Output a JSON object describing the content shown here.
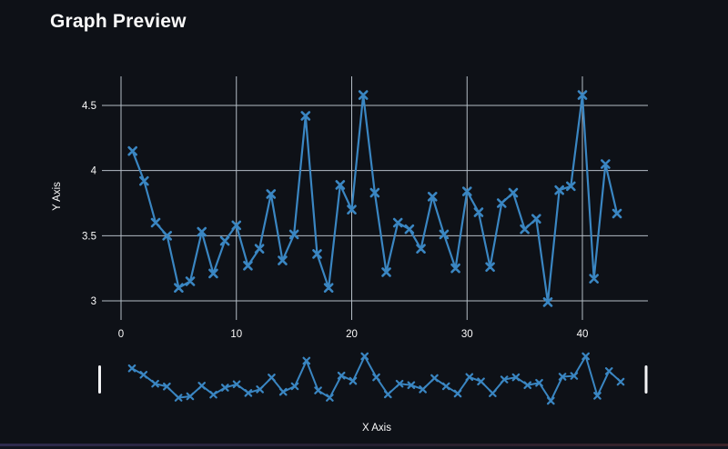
{
  "title": "Graph Preview",
  "theme": {
    "background": "#0e1117",
    "text_color": "#fafafa",
    "grid_color": "#b4bdc6",
    "line_color": "#3a86c2",
    "handle_color": "#f2f3f5",
    "bottom_bar_gradient": [
      "#2e2b4e",
      "#241f30",
      "#3b2329"
    ]
  },
  "chart_data": {
    "type": "line",
    "title": "Graph Preview",
    "xlabel": "X Axis",
    "ylabel": "Y Axis",
    "marker": "x",
    "grid": true,
    "legend": false,
    "x_ticks": [
      0,
      10,
      20,
      30,
      40
    ],
    "y_ticks": [
      3,
      3.5,
      4,
      4.5
    ],
    "xlim": [
      -1,
      45.7
    ],
    "ylim": [
      2.85,
      4.72
    ],
    "x": [
      1,
      2,
      3,
      4,
      5,
      6,
      7,
      8,
      9,
      10,
      11,
      12,
      13,
      14,
      15,
      16,
      17,
      18,
      19,
      20,
      21,
      22,
      23,
      24,
      25,
      26,
      27,
      28,
      29,
      30,
      31,
      32,
      33,
      34,
      35,
      36,
      37,
      38,
      39,
      40,
      41,
      42,
      43
    ],
    "y": [
      4.15,
      3.92,
      3.6,
      3.5,
      3.1,
      3.15,
      3.53,
      3.21,
      3.46,
      3.58,
      3.27,
      3.4,
      3.82,
      3.31,
      3.51,
      4.42,
      3.36,
      3.1,
      3.89,
      3.7,
      4.58,
      3.83,
      3.22,
      3.6,
      3.55,
      3.4,
      3.8,
      3.51,
      3.25,
      3.84,
      3.68,
      3.26,
      3.75,
      3.83,
      3.55,
      3.63,
      2.99,
      3.85,
      3.88,
      4.58,
      3.17,
      4.05,
      3.67
    ]
  },
  "navigator": {
    "shows": "full-series-preview",
    "handles": [
      "start",
      "end"
    ]
  }
}
